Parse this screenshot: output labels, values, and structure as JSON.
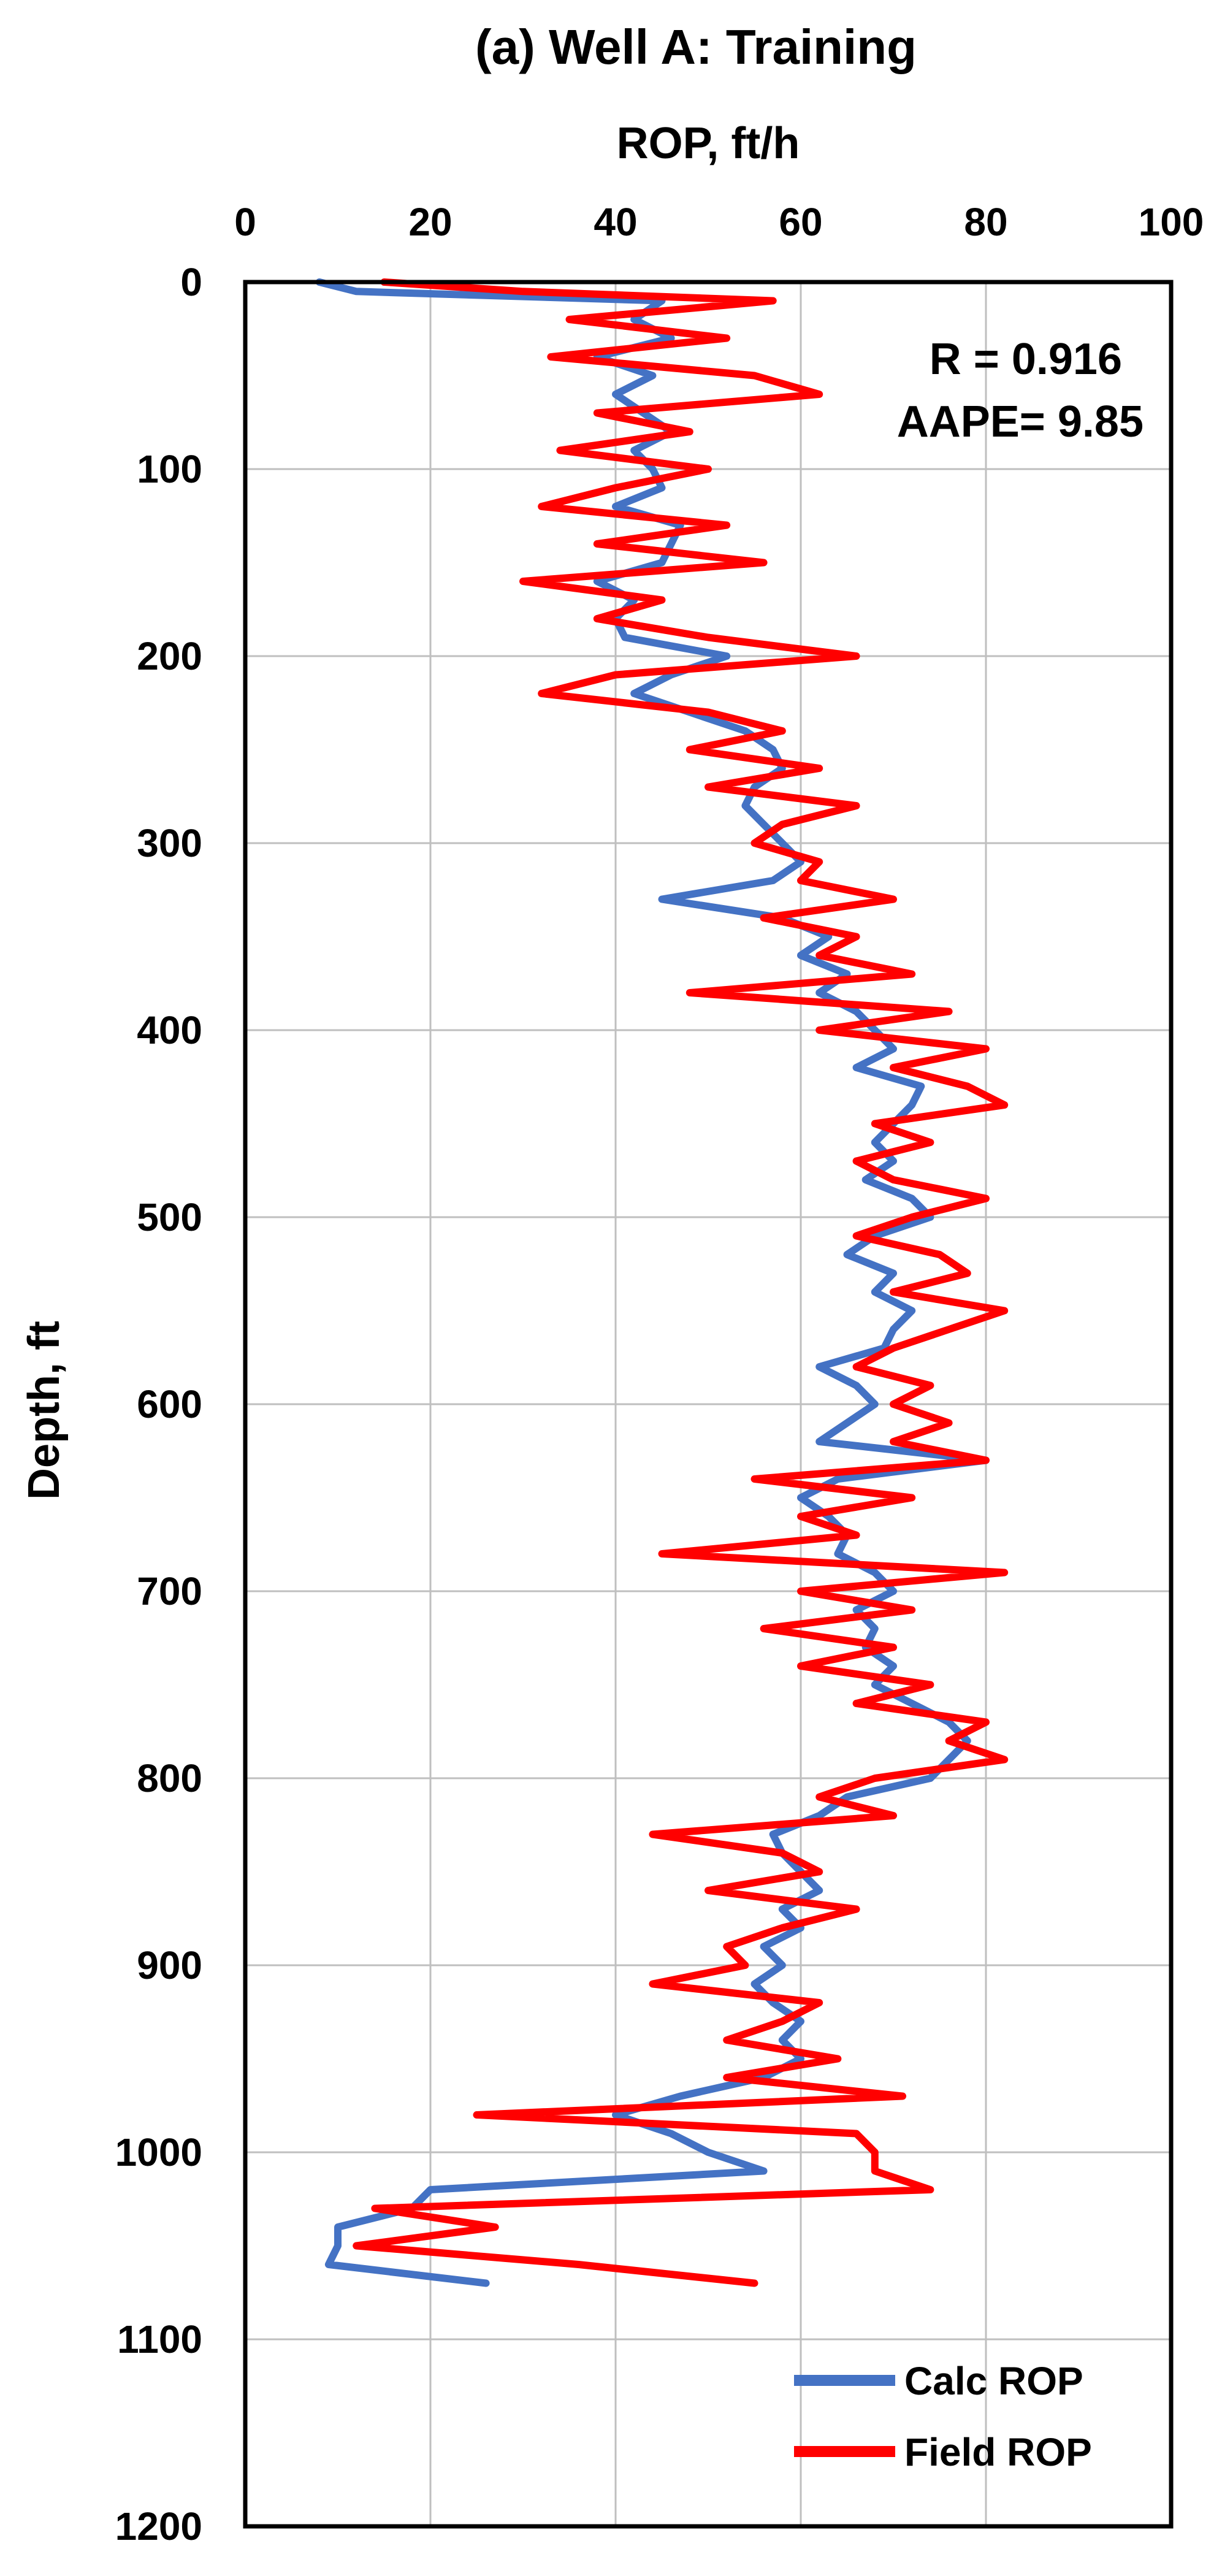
{
  "chart_data": {
    "type": "line",
    "title": "(a) Well A: Training",
    "xlabel": "ROP, ft/h",
    "ylabel": "Depth, ft",
    "xlim": [
      0,
      100
    ],
    "ylim": [
      0,
      1200
    ],
    "y_inverted": true,
    "x_axis_position": "top",
    "x_ticks": [
      "0",
      "20",
      "40",
      "60",
      "80",
      "100"
    ],
    "y_ticks": [
      "0",
      "100",
      "200",
      "300",
      "400",
      "500",
      "600",
      "700",
      "800",
      "900",
      "1000",
      "1100",
      "1200"
    ],
    "grid": true,
    "annotations": [
      "R = 0.916",
      "AAPE= 9.85"
    ],
    "legend_position": "bottom-right",
    "series": [
      {
        "name": "Calc ROP",
        "color": "#4472C4",
        "depth": [
          0,
          5,
          10,
          20,
          30,
          40,
          50,
          60,
          70,
          80,
          90,
          100,
          110,
          120,
          130,
          140,
          150,
          160,
          170,
          180,
          190,
          200,
          210,
          220,
          230,
          240,
          250,
          260,
          270,
          280,
          290,
          300,
          310,
          320,
          330,
          340,
          350,
          360,
          370,
          380,
          390,
          400,
          410,
          420,
          430,
          440,
          450,
          460,
          470,
          480,
          490,
          500,
          510,
          520,
          530,
          540,
          550,
          560,
          570,
          580,
          590,
          600,
          610,
          620,
          630,
          640,
          650,
          660,
          670,
          680,
          690,
          700,
          710,
          720,
          730,
          740,
          750,
          760,
          770,
          780,
          790,
          800,
          810,
          820,
          830,
          840,
          850,
          860,
          870,
          880,
          890,
          900,
          910,
          920,
          930,
          940,
          950,
          960,
          970,
          980,
          990,
          1000,
          1010,
          1020,
          1030,
          1040,
          1050,
          1060,
          1070
        ],
        "rop": [
          8,
          12,
          45,
          42,
          46,
          38,
          44,
          40,
          43,
          46,
          42,
          44,
          45,
          40,
          47,
          46,
          45,
          38,
          42,
          40,
          41,
          52,
          46,
          42,
          48,
          54,
          57,
          58,
          55,
          54,
          56,
          58,
          60,
          57,
          45,
          58,
          63,
          60,
          65,
          62,
          66,
          68,
          70,
          66,
          73,
          72,
          70,
          68,
          70,
          67,
          72,
          74,
          68,
          65,
          70,
          68,
          72,
          70,
          69,
          62,
          66,
          68,
          65,
          62,
          80,
          64,
          60,
          63,
          65,
          64,
          68,
          70,
          66,
          68,
          67,
          70,
          68,
          72,
          76,
          78,
          76,
          74,
          65,
          62,
          57,
          58,
          60,
          62,
          58,
          60,
          56,
          58,
          55,
          57,
          60,
          58,
          60,
          56,
          47,
          40,
          46,
          50,
          56,
          20,
          18,
          10,
          10,
          9,
          26
        ]
      },
      {
        "name": "Field ROP",
        "color": "#FF0000",
        "depth": [
          0,
          5,
          10,
          20,
          30,
          40,
          50,
          60,
          70,
          80,
          90,
          100,
          110,
          120,
          130,
          140,
          150,
          160,
          170,
          180,
          190,
          200,
          210,
          220,
          230,
          240,
          250,
          260,
          270,
          280,
          290,
          300,
          310,
          320,
          330,
          340,
          350,
          360,
          370,
          380,
          390,
          400,
          410,
          420,
          430,
          440,
          450,
          460,
          470,
          480,
          490,
          500,
          510,
          520,
          530,
          540,
          550,
          560,
          570,
          580,
          590,
          600,
          610,
          620,
          630,
          640,
          650,
          660,
          670,
          680,
          690,
          700,
          710,
          720,
          730,
          740,
          750,
          760,
          770,
          780,
          790,
          800,
          810,
          820,
          830,
          840,
          850,
          860,
          870,
          880,
          890,
          900,
          910,
          920,
          930,
          940,
          950,
          960,
          970,
          980,
          990,
          1000,
          1010,
          1020,
          1030,
          1040,
          1050,
          1060,
          1070
        ],
        "rop": [
          15,
          30,
          57,
          35,
          52,
          33,
          55,
          62,
          38,
          48,
          34,
          50,
          40,
          32,
          52,
          38,
          56,
          30,
          45,
          38,
          50,
          66,
          40,
          32,
          50,
          58,
          48,
          62,
          50,
          66,
          58,
          55,
          62,
          60,
          70,
          56,
          66,
          62,
          72,
          48,
          76,
          62,
          80,
          70,
          78,
          82,
          68,
          74,
          66,
          70,
          80,
          72,
          66,
          75,
          78,
          70,
          82,
          76,
          70,
          66,
          74,
          70,
          76,
          70,
          80,
          55,
          72,
          60,
          66,
          45,
          82,
          60,
          72,
          56,
          70,
          60,
          74,
          66,
          80,
          76,
          82,
          68,
          62,
          70,
          44,
          58,
          62,
          50,
          66,
          58,
          52,
          54,
          44,
          62,
          58,
          52,
          64,
          52,
          71,
          25,
          66,
          68,
          68,
          74,
          14,
          27,
          12,
          36,
          55
        ]
      }
    ]
  }
}
